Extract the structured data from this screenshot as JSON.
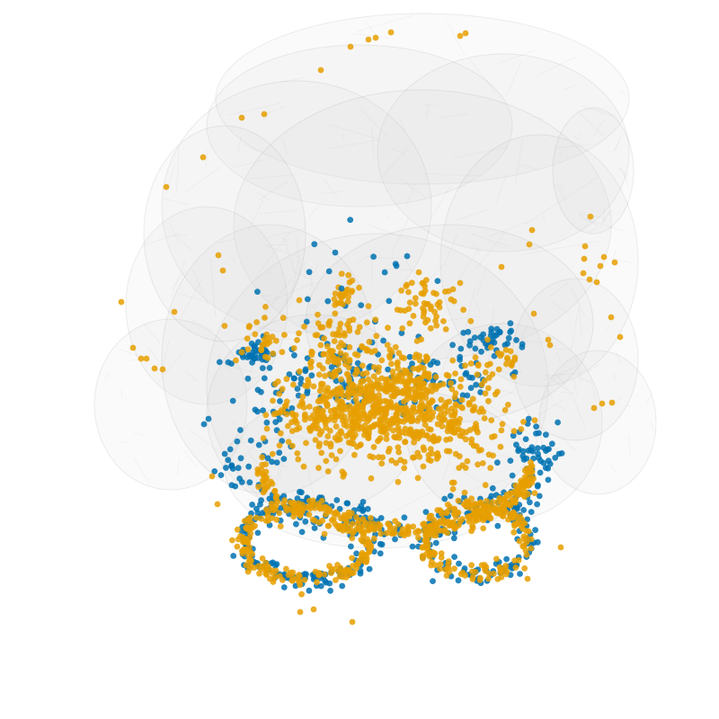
{
  "scene": {
    "background": "#ffffff",
    "mesh_fill": "#d9d9d9",
    "mesh_edge": "#9a9a9a",
    "series": [
      {
        "color": "#0072b2",
        "count": 650
      },
      {
        "color": "#e69f00",
        "count": 1900
      }
    ]
  }
}
